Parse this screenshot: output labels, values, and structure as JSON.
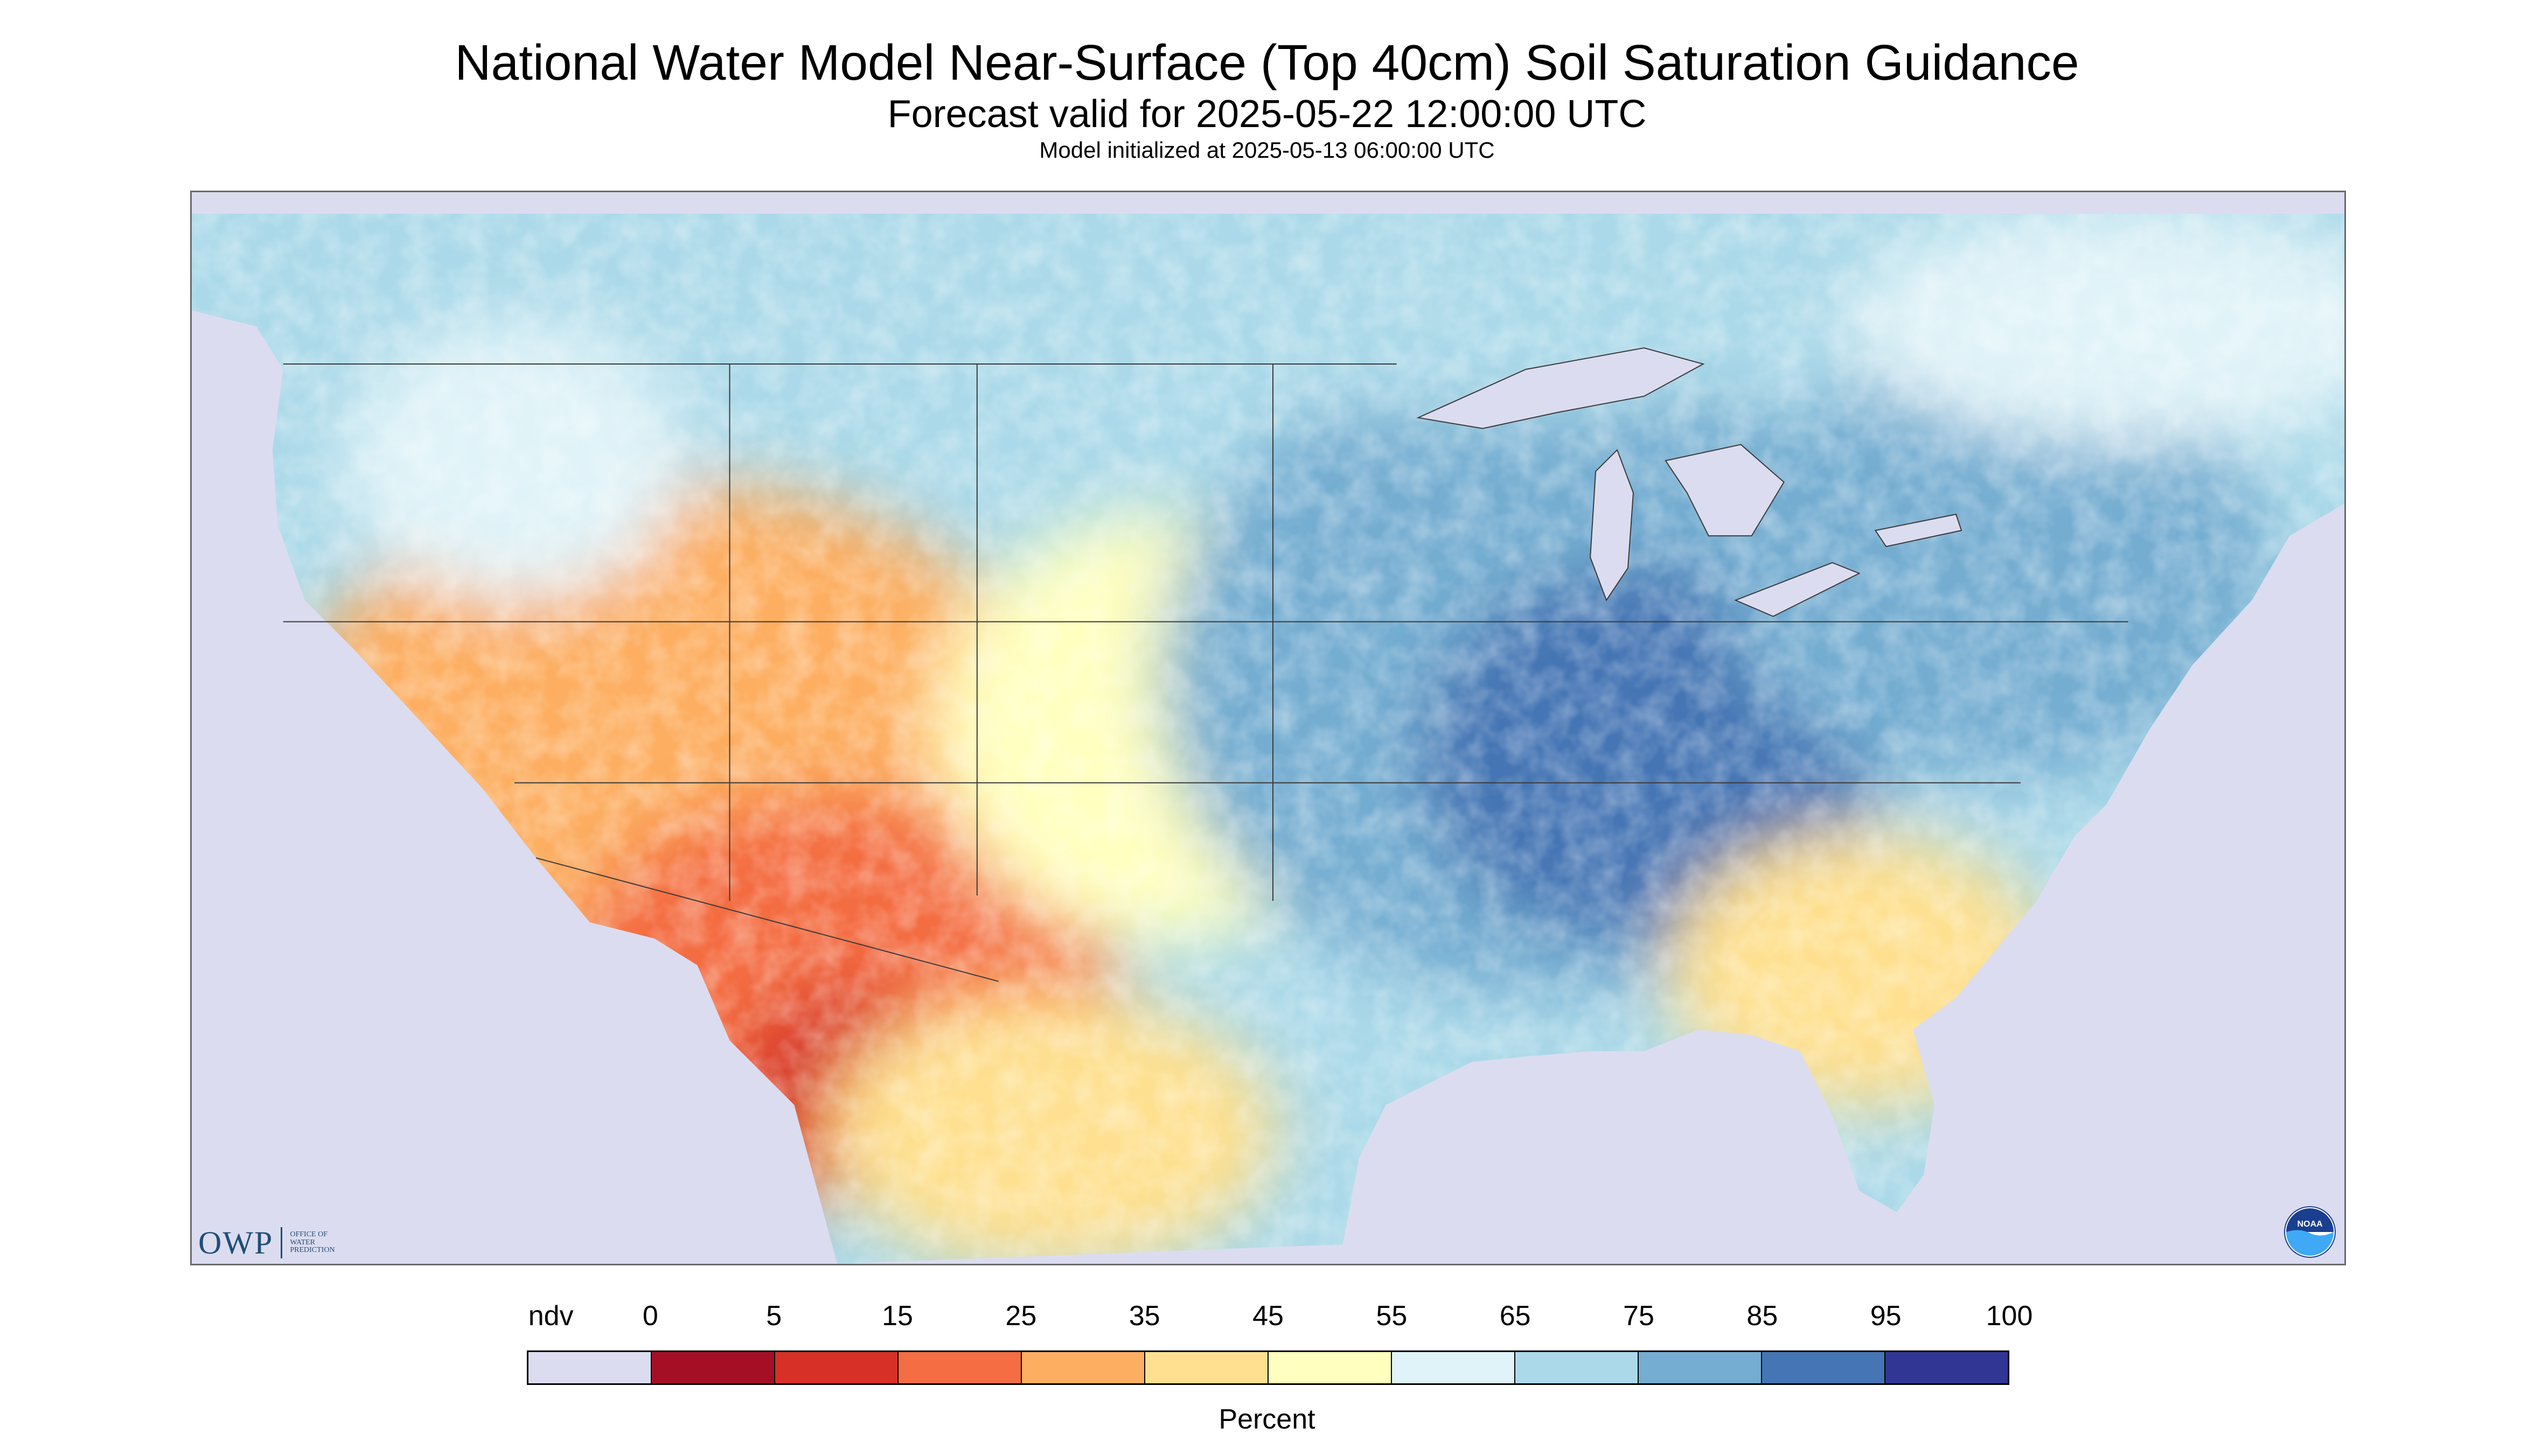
{
  "header": {
    "title": "National Water Model Near-Surface (Top 40cm) Soil Saturation Guidance",
    "subtitle": "Forecast valid for 2025-05-22 12:00:00 UTC",
    "init_line": "Model initialized at 2025-05-13 06:00:00 UTC"
  },
  "logos": {
    "owp_letters": "OWP",
    "owp_line1": "OFFICE OF",
    "owp_line2": "WATER",
    "owp_line3": "PREDICTION",
    "noaa": "NOAA"
  },
  "legend": {
    "ticks": [
      "ndv",
      "0",
      "5",
      "15",
      "25",
      "35",
      "45",
      "55",
      "65",
      "75",
      "85",
      "95",
      "100"
    ],
    "colors": [
      "#dcdcf0",
      "#a50f26",
      "#d73027",
      "#f46d43",
      "#fdae61",
      "#fee090",
      "#ffffbf",
      "#e0f3f8",
      "#abd9e9",
      "#74add1",
      "#4575b4",
      "#313695"
    ],
    "unit": "Percent"
  },
  "map_colors": {
    "no_data": "#dcdcf0",
    "water": "#dcdcf0",
    "border": "#3a3a3a"
  }
}
